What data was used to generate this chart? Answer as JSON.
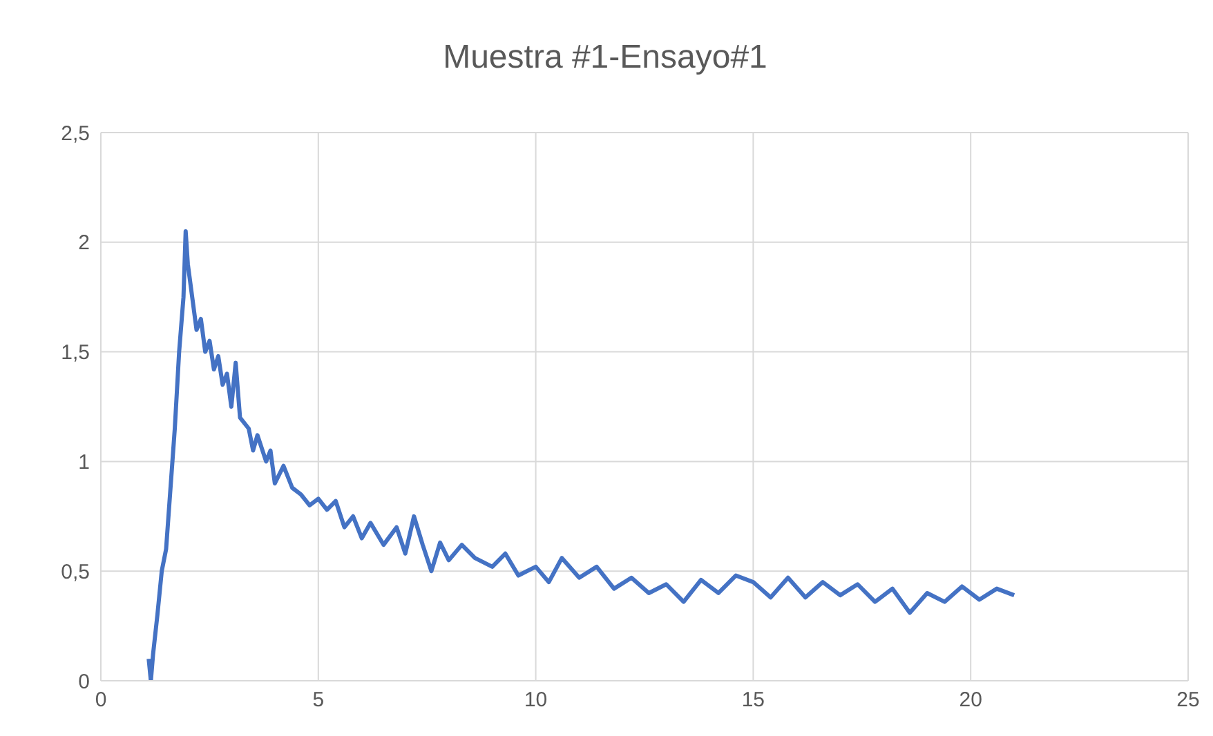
{
  "chart_data": {
    "type": "line",
    "title": "Muestra #1-Ensayo#1",
    "grid": true,
    "legend": false,
    "marker": "none",
    "line_style": "solid",
    "xlim": [
      0,
      25
    ],
    "xticks": [
      0,
      5,
      10,
      15,
      20,
      25
    ],
    "ylim": [
      0,
      2.5
    ],
    "yticks": [
      0,
      {
        "value": 0.5,
        "label": "0,5"
      },
      1,
      {
        "value": 1.5,
        "label": "1,5"
      },
      2,
      {
        "value": 2.5,
        "label": "2,5"
      }
    ],
    "x": [
      1.1,
      1.15,
      1.2,
      1.3,
      1.4,
      1.5,
      1.7,
      1.8,
      1.9,
      1.95,
      2.0,
      2.1,
      2.2,
      2.3,
      2.4,
      2.5,
      2.6,
      2.7,
      2.8,
      2.9,
      3.0,
      3.1,
      3.2,
      3.4,
      3.5,
      3.6,
      3.8,
      3.9,
      4.0,
      4.2,
      4.4,
      4.6,
      4.8,
      5.0,
      5.2,
      5.4,
      5.6,
      5.8,
      6.0,
      6.2,
      6.5,
      6.8,
      7.0,
      7.2,
      7.4,
      7.6,
      7.8,
      8.0,
      8.3,
      8.6,
      9.0,
      9.3,
      9.6,
      10.0,
      10.3,
      10.6,
      11.0,
      11.4,
      11.8,
      12.2,
      12.6,
      13.0,
      13.4,
      13.8,
      14.2,
      14.6,
      15.0,
      15.4,
      15.8,
      16.2,
      16.6,
      17.0,
      17.4,
      17.8,
      18.2,
      18.6,
      19.0,
      19.4,
      19.8,
      20.2,
      20.6,
      21.0
    ],
    "series": [
      {
        "color": "#4472c4",
        "values": [
          0.1,
          0.0,
          0.12,
          0.3,
          0.5,
          0.6,
          1.15,
          1.5,
          1.75,
          2.05,
          1.9,
          1.75,
          1.6,
          1.65,
          1.5,
          1.55,
          1.42,
          1.48,
          1.35,
          1.4,
          1.25,
          1.45,
          1.2,
          1.15,
          1.05,
          1.12,
          1.0,
          1.05,
          0.9,
          0.98,
          0.88,
          0.85,
          0.8,
          0.83,
          0.78,
          0.82,
          0.7,
          0.75,
          0.65,
          0.72,
          0.62,
          0.7,
          0.58,
          0.75,
          0.62,
          0.5,
          0.63,
          0.55,
          0.62,
          0.56,
          0.52,
          0.58,
          0.48,
          0.52,
          0.45,
          0.56,
          0.47,
          0.52,
          0.42,
          0.47,
          0.4,
          0.44,
          0.36,
          0.46,
          0.4,
          0.48,
          0.45,
          0.38,
          0.47,
          0.38,
          0.45,
          0.39,
          0.44,
          0.36,
          0.42,
          0.31,
          0.4,
          0.36,
          0.43,
          0.37,
          0.42,
          0.39
        ]
      }
    ]
  }
}
